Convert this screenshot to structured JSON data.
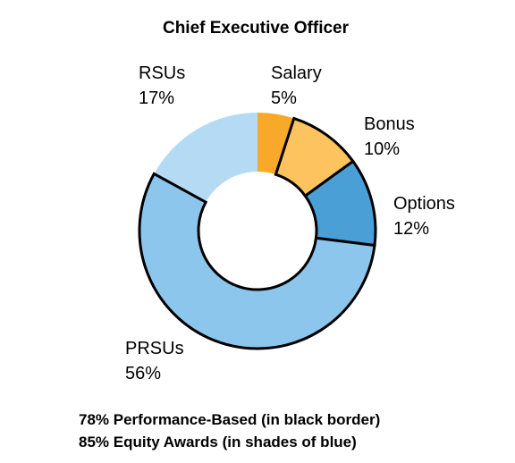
{
  "chart_data": {
    "type": "pie",
    "title": "Chief Executive Officer",
    "categories": [
      "Salary",
      "Bonus",
      "Options",
      "PRSUs",
      "RSUs"
    ],
    "values": [
      5,
      10,
      12,
      56,
      17
    ],
    "value_labels": [
      "5%",
      "10%",
      "12%",
      "56%",
      "17%"
    ],
    "colors": [
      "#f8a92a",
      "#fdc35f",
      "#4a9fd6",
      "#8dc6ed",
      "#b5dbf4"
    ],
    "outlined": [
      false,
      true,
      true,
      true,
      false
    ],
    "annotations": [
      "78% Performance-Based (in black border)",
      "85% Equity Awards (in shades of blue)"
    ]
  }
}
